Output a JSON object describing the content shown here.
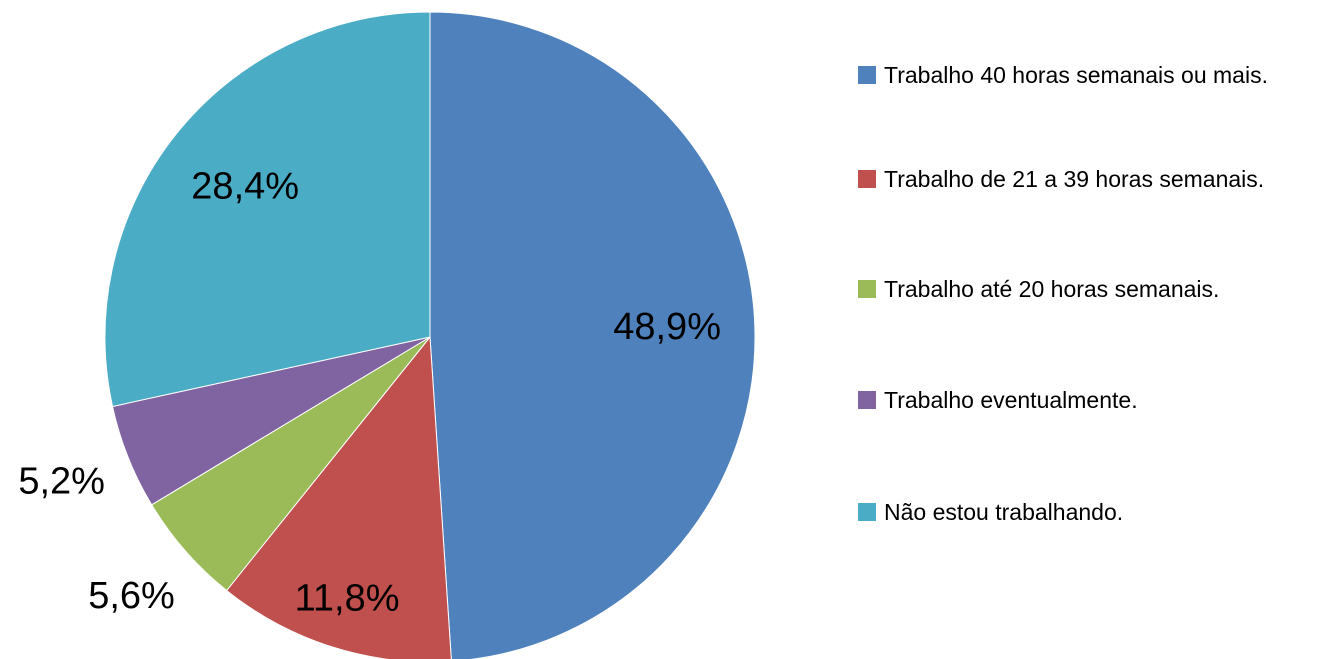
{
  "chart_data": {
    "type": "pie",
    "categories": [
      "Trabalho 40 horas semanais ou mais.",
      "Trabalho de 21 a 39 horas semanais.",
      "Trabalho até 20 horas semanais.",
      "Trabalho eventualmente.",
      "Não estou trabalhando."
    ],
    "values": [
      48.9,
      11.8,
      5.6,
      5.2,
      28.4
    ],
    "value_labels": [
      "48,9%",
      "11,8%",
      "5,6%",
      "5,2%",
      "28,4%"
    ],
    "colors": [
      "#4f81bd",
      "#c0504d",
      "#9bbb59",
      "#8064a2",
      "#4bacc6"
    ],
    "legend": "right"
  }
}
